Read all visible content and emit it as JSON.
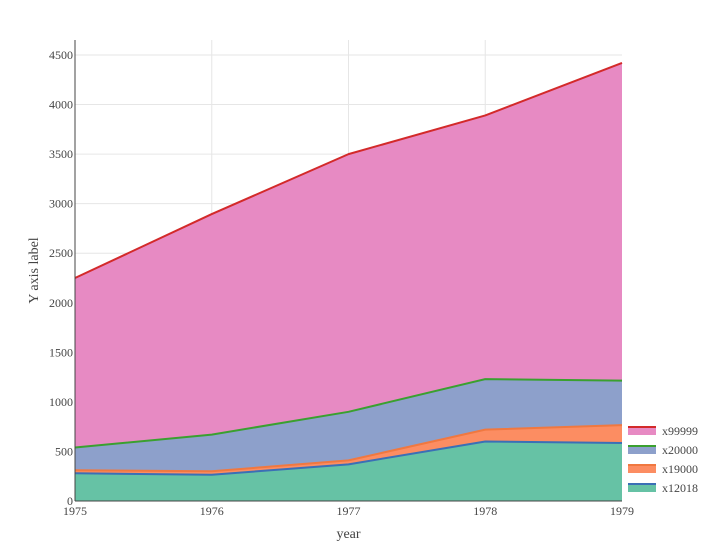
{
  "chart_data": {
    "type": "area",
    "stacked": true,
    "title": "",
    "xlabel": "year",
    "ylabel": "Y axis label",
    "x": [
      1975,
      1976,
      1977,
      1978,
      1979
    ],
    "x_ticks": [
      "1975",
      "1976",
      "1977",
      "1978",
      "1979"
    ],
    "y_ticks": [
      "0",
      "500",
      "1000",
      "1500",
      "2000",
      "2500",
      "3000",
      "3500",
      "4000",
      "4500"
    ],
    "ylim": [
      0,
      4500
    ],
    "grid": true,
    "legend_position": "bottom-right",
    "series": [
      {
        "name": "x12018",
        "values": [
          280,
          265,
          370,
          600,
          585
        ],
        "fill": "#66c2a5",
        "line": "#3b6fb6"
      },
      {
        "name": "x19000",
        "values": [
          30,
          35,
          40,
          120,
          180
        ],
        "fill": "#fc8d62",
        "line": "#f07840"
      },
      {
        "name": "x20000",
        "values": [
          230,
          370,
          490,
          510,
          450
        ],
        "fill": "#8da0cb",
        "line": "#3aa02f"
      },
      {
        "name": "x99999",
        "values": [
          1710,
          2225,
          2600,
          2660,
          3205
        ],
        "fill": "#e78ac3",
        "line": "#d32a2a"
      }
    ]
  }
}
